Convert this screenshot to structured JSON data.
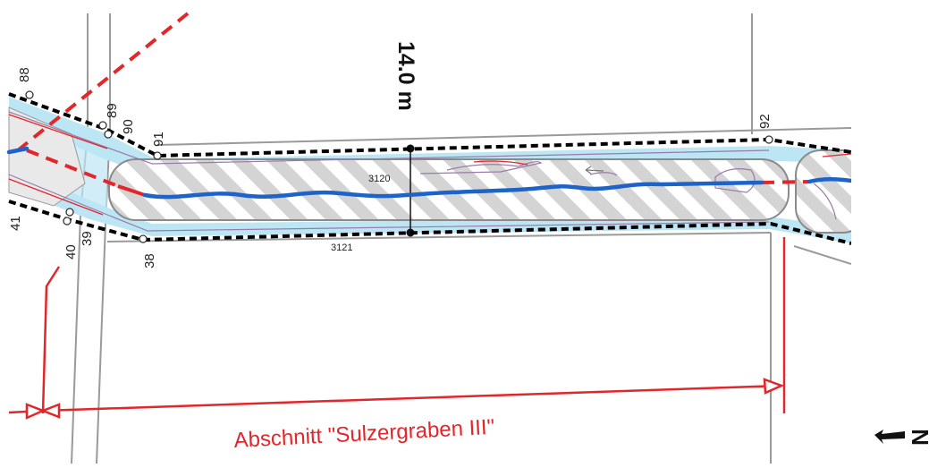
{
  "map": {
    "width_label": "14.0 m",
    "section_label": "Abschnitt \"Sulzergraben III\"",
    "parcels": {
      "upper": "3120",
      "lower": "3121"
    },
    "points": {
      "p88": "88",
      "p89": "89",
      "p90": "90",
      "p91": "91",
      "p92": "92",
      "p41": "41",
      "p40": "40",
      "p39": "39",
      "p38": "38"
    },
    "north_arrow": {
      "letter": "N",
      "icon": "north-arrow-icon"
    },
    "colors": {
      "water_channel": "#1e63c8",
      "buffer_fill": "#bde6f5",
      "hatch": "#cfcfcf",
      "section_marker": "#e3262a",
      "boundary_dash": "#000000"
    }
  }
}
